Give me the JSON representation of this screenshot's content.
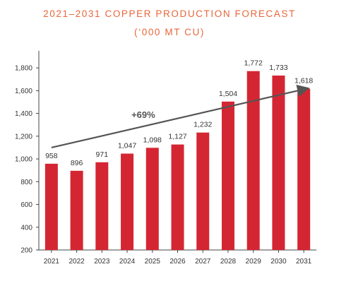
{
  "chart_data": {
    "type": "bar",
    "title": "2021–2031 COPPER PRODUCTION FORECAST",
    "subtitle": "(‘000 MT CU)",
    "categories": [
      "2021",
      "2022",
      "2023",
      "2024",
      "2025",
      "2026",
      "2027",
      "2028",
      "2029",
      "2030",
      "2031"
    ],
    "values": [
      958,
      896,
      971,
      1047,
      1098,
      1127,
      1232,
      1504,
      1772,
      1733,
      1618
    ],
    "value_labels": [
      "958",
      "896",
      "971",
      "1,047",
      "1,098",
      "1,127",
      "1,232",
      "1,504",
      "1,772",
      "1,733",
      "1,618"
    ],
    "ylim": [
      200,
      1950
    ],
    "yticks": [
      200,
      400,
      600,
      800,
      1000,
      1200,
      1400,
      1600,
      1800
    ],
    "ytick_labels": [
      "200",
      "400",
      "600",
      "800",
      "1,000",
      "1,200",
      "1,400",
      "1,600",
      "1,800"
    ],
    "trend": {
      "start": 1100,
      "end": 1618,
      "label": "+69%"
    },
    "colors": {
      "bar": "#d42632",
      "trend": "#555555",
      "title": "#e8663a"
    },
    "grid": false
  }
}
